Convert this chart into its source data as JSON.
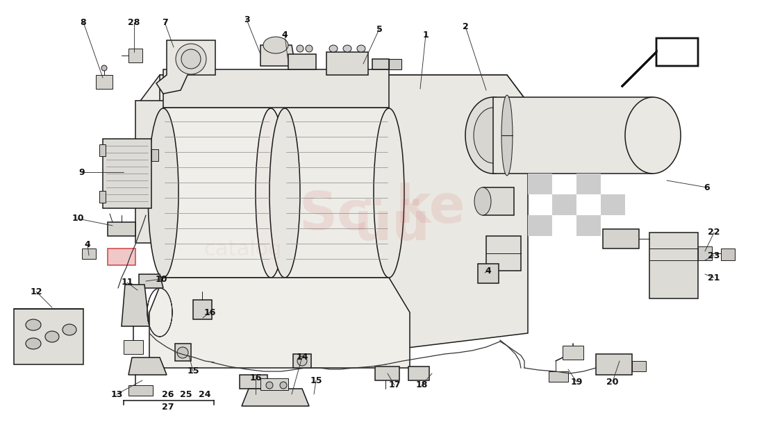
{
  "bg_color": "#ffffff",
  "line_color": "#1a1a1a",
  "watermark_r": "#e8a0a0",
  "watermark_alpha": 0.25,
  "arrow_fill": "#ffffff",
  "arrow_stroke": "#111111",
  "part_fill": "#f0eeeb",
  "part_stroke": "#222222",
  "numbers": [
    [
      "8",
      120,
      32
    ],
    [
      "28",
      193,
      32
    ],
    [
      "7",
      237,
      32
    ],
    [
      "3",
      355,
      28
    ],
    [
      "4",
      410,
      50
    ],
    [
      "5",
      546,
      42
    ],
    [
      "1",
      613,
      50
    ],
    [
      "2",
      670,
      38
    ],
    [
      "6",
      1018,
      270
    ],
    [
      "9",
      118,
      248
    ],
    [
      "10",
      112,
      315
    ],
    [
      "10",
      232,
      402
    ],
    [
      "4",
      126,
      352
    ],
    [
      "4",
      703,
      390
    ],
    [
      "11",
      183,
      407
    ],
    [
      "12",
      52,
      420
    ],
    [
      "13",
      168,
      568
    ],
    [
      "26",
      242,
      568
    ],
    [
      "25",
      268,
      568
    ],
    [
      "24",
      295,
      568
    ],
    [
      "27",
      242,
      586
    ],
    [
      "14",
      435,
      514
    ],
    [
      "15",
      278,
      535
    ],
    [
      "15",
      455,
      548
    ],
    [
      "16",
      302,
      450
    ],
    [
      "16",
      368,
      545
    ],
    [
      "17",
      568,
      555
    ],
    [
      "18",
      607,
      555
    ],
    [
      "19",
      830,
      550
    ],
    [
      "20",
      882,
      550
    ],
    [
      "21",
      1028,
      400
    ],
    [
      "22",
      1028,
      335
    ],
    [
      "23",
      1028,
      368
    ]
  ],
  "leader_lines": [
    [
      120,
      32,
      148,
      112
    ],
    [
      193,
      32,
      193,
      75
    ],
    [
      237,
      32,
      250,
      68
    ],
    [
      355,
      28,
      375,
      78
    ],
    [
      410,
      50,
      415,
      90
    ],
    [
      546,
      42,
      523,
      92
    ],
    [
      613,
      50,
      605,
      128
    ],
    [
      670,
      38,
      700,
      130
    ],
    [
      1018,
      270,
      960,
      260
    ],
    [
      118,
      248,
      178,
      248
    ],
    [
      112,
      315,
      162,
      325
    ],
    [
      232,
      402,
      210,
      405
    ],
    [
      126,
      352,
      128,
      368
    ],
    [
      703,
      390,
      698,
      393
    ],
    [
      183,
      407,
      198,
      418
    ],
    [
      52,
      420,
      75,
      443
    ],
    [
      168,
      568,
      205,
      548
    ],
    [
      435,
      514,
      420,
      568
    ],
    [
      278,
      535,
      272,
      512
    ],
    [
      455,
      548,
      452,
      568
    ],
    [
      302,
      450,
      292,
      458
    ],
    [
      368,
      545,
      368,
      568
    ],
    [
      568,
      555,
      558,
      538
    ],
    [
      607,
      555,
      622,
      538
    ],
    [
      830,
      550,
      818,
      532
    ],
    [
      882,
      550,
      892,
      520
    ],
    [
      1028,
      400,
      1015,
      395
    ],
    [
      1028,
      335,
      1015,
      362
    ],
    [
      1028,
      368,
      1015,
      375
    ]
  ]
}
